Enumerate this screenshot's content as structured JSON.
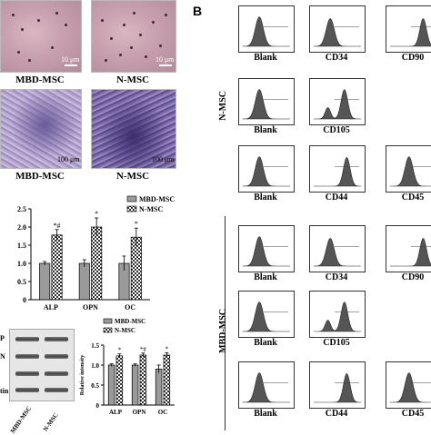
{
  "section_b_label": "B",
  "micrographs_top": [
    {
      "caption": "MBD-MSC",
      "scale": "10 μm"
    },
    {
      "caption": "N-MSC",
      "scale": "10 μm"
    }
  ],
  "micrographs_bottom": [
    {
      "caption": "MBD-MSC",
      "scale": "100 μm"
    },
    {
      "caption": "N-MSC",
      "scale": "100 μm"
    }
  ],
  "flow_groups": [
    {
      "side_label": "N-MSC",
      "panels": [
        "Blank",
        "CD34",
        "CD90",
        "Blank",
        "CD105",
        "",
        "Blank",
        "CD44",
        "CD45"
      ]
    },
    {
      "side_label": "MBD-MSC",
      "panels": [
        "Blank",
        "CD34",
        "CD90",
        "Blank",
        "CD105",
        "",
        "Blank",
        "CD44",
        "CD45"
      ]
    }
  ],
  "chart_data": [
    {
      "type": "bar",
      "categories": [
        "ALP",
        "OPN",
        "OC"
      ],
      "series": [
        {
          "name": "MBD-MSC",
          "values": [
            1.0,
            1.0,
            1.0
          ],
          "errors": [
            0.05,
            0.1,
            0.2
          ],
          "marks": [
            "",
            "",
            ""
          ]
        },
        {
          "name": "N-MSC",
          "values": [
            1.78,
            2.0,
            1.72
          ],
          "errors": [
            0.15,
            0.25,
            0.25
          ],
          "marks": [
            "*#",
            "*",
            "*"
          ]
        }
      ],
      "ylim": [
        0,
        2.5
      ],
      "yticks": [
        "0",
        "0.5",
        "1.0",
        "1.5",
        "2.0",
        "2.5"
      ],
      "ylabel": "",
      "legend": "top-right",
      "fill": {
        "MBD-MSC": "#9a9a9a",
        "N-MSC": "checker"
      }
    },
    {
      "type": "bar",
      "categories": [
        "ALP",
        "OPN",
        "OC"
      ],
      "series": [
        {
          "name": "MBD-MSC",
          "values": [
            1.0,
            1.0,
            0.9
          ],
          "errors": [
            0.03,
            0.03,
            0.1
          ],
          "marks": [
            "",
            "",
            ""
          ]
        },
        {
          "name": "N-MSC",
          "values": [
            1.23,
            1.25,
            1.25
          ],
          "errors": [
            0.05,
            0.05,
            0.06
          ],
          "marks": [
            "*",
            "*#",
            "*"
          ]
        }
      ],
      "ylim": [
        0,
        1.5
      ],
      "yticks": [
        "0",
        "0.5",
        "1.0",
        "1.5"
      ],
      "ylabel": "Relative intensity",
      "legend": "top-right",
      "fill": {
        "MBD-MSC": "#9a9a9a",
        "N-MSC": "checker"
      }
    }
  ],
  "western_blot": {
    "row_labels": [
      "P",
      "N",
      "",
      "tin"
    ],
    "lane_labels": [
      "MBD-MSC",
      "N-MSC"
    ]
  }
}
